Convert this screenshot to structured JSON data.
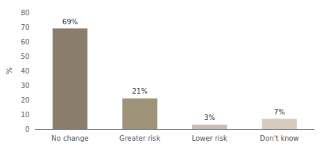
{
  "chart_data": {
    "type": "bar",
    "categories": [
      "No change",
      "Greater risk",
      "Lower risk",
      "Don't know"
    ],
    "values": [
      69,
      21,
      3,
      7
    ],
    "value_labels": [
      "69%",
      "21%",
      "3%",
      "7%"
    ],
    "colors": [
      "#8B7D6B",
      "#9E9278",
      "#C8BFB0",
      "#D6CCBE"
    ],
    "ylabel": "%",
    "ylim": [
      0,
      80
    ],
    "yticks": [
      0,
      10,
      20,
      30,
      40,
      50,
      60,
      70,
      80
    ],
    "data_labels": true,
    "grid": false
  }
}
